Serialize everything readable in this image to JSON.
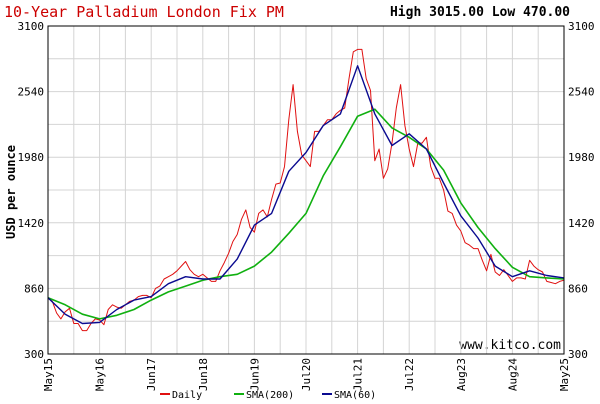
{
  "header": {
    "title": "10-Year Palladium London Fix PM",
    "high_low": "High 3015.00 Low 470.00"
  },
  "watermark": "www.kitco.com",
  "colors": {
    "title": "#cc0000",
    "daily": "#e01010",
    "sma200": "#10b010",
    "sma60": "#0a0a90",
    "grid": "#d4d4d4",
    "border": "#000000",
    "background": "#ffffff"
  },
  "chart_data": {
    "type": "line",
    "title": "10-Year Palladium London Fix PM",
    "ylabel": "USD per ounce",
    "xlabel": "",
    "ylim": [
      300,
      3100
    ],
    "yticks": [
      300,
      860,
      1420,
      1980,
      2540,
      3100
    ],
    "x_range": [
      "2015-05",
      "2025-05"
    ],
    "x_tick_labels": [
      "May15",
      "May16",
      "Jun17",
      "Jun18",
      "Jun19",
      "Jul20",
      "Jul21",
      "Jul22",
      "Aug23",
      "Aug24",
      "May25"
    ],
    "grid": true,
    "legend_position": "bottom",
    "series": [
      {
        "name": "Daily",
        "color": "#e01010",
        "x": [
          "2015-05",
          "2015-06",
          "2015-07",
          "2015-08",
          "2015-09",
          "2015-10",
          "2015-11",
          "2015-12",
          "2016-01",
          "2016-02",
          "2016-03",
          "2016-04",
          "2016-05",
          "2016-06",
          "2016-07",
          "2016-08",
          "2016-09",
          "2016-10",
          "2016-11",
          "2016-12",
          "2017-01",
          "2017-02",
          "2017-03",
          "2017-04",
          "2017-05",
          "2017-06",
          "2017-07",
          "2017-08",
          "2017-09",
          "2017-10",
          "2017-11",
          "2017-12",
          "2018-01",
          "2018-02",
          "2018-03",
          "2018-04",
          "2018-05",
          "2018-06",
          "2018-07",
          "2018-08",
          "2018-09",
          "2018-10",
          "2018-11",
          "2018-12",
          "2019-01",
          "2019-02",
          "2019-03",
          "2019-04",
          "2019-05",
          "2019-06",
          "2019-07",
          "2019-08",
          "2019-09",
          "2019-10",
          "2019-11",
          "2019-12",
          "2020-01",
          "2020-02",
          "2020-03",
          "2020-04",
          "2020-05",
          "2020-06",
          "2020-07",
          "2020-08",
          "2020-09",
          "2020-10",
          "2020-11",
          "2020-12",
          "2021-01",
          "2021-02",
          "2021-03",
          "2021-04",
          "2021-05",
          "2021-06",
          "2021-07",
          "2021-08",
          "2021-09",
          "2021-10",
          "2021-11",
          "2021-12",
          "2022-01",
          "2022-02",
          "2022-03",
          "2022-04",
          "2022-05",
          "2022-06",
          "2022-07",
          "2022-08",
          "2022-09",
          "2022-10",
          "2022-11",
          "2022-12",
          "2023-01",
          "2023-02",
          "2023-03",
          "2023-04",
          "2023-05",
          "2023-06",
          "2023-07",
          "2023-08",
          "2023-09",
          "2023-10",
          "2023-11",
          "2023-12",
          "2024-01",
          "2024-02",
          "2024-03",
          "2024-04",
          "2024-05",
          "2024-06",
          "2024-07",
          "2024-08",
          "2024-09",
          "2024-10",
          "2024-11",
          "2024-12",
          "2025-01",
          "2025-02",
          "2025-03",
          "2025-04",
          "2025-05"
        ],
        "y": [
          780,
          750,
          650,
          600,
          660,
          690,
          560,
          560,
          500,
          500,
          560,
          600,
          590,
          550,
          680,
          720,
          700,
          690,
          720,
          750,
          760,
          790,
          800,
          800,
          780,
          860,
          880,
          940,
          960,
          980,
          1010,
          1050,
          1090,
          1020,
          980,
          960,
          980,
          950,
          920,
          920,
          1010,
          1080,
          1160,
          1260,
          1320,
          1450,
          1530,
          1380,
          1340,
          1500,
          1530,
          1470,
          1620,
          1750,
          1760,
          1900,
          2300,
          2600,
          2200,
          2000,
          1950,
          1900,
          2200,
          2200,
          2250,
          2300,
          2300,
          2350,
          2380,
          2400,
          2650,
          2880,
          2900,
          2900,
          2650,
          2550,
          1950,
          2050,
          1800,
          1880,
          2100,
          2400,
          2600,
          2250,
          2050,
          1900,
          2100,
          2100,
          2150,
          1900,
          1800,
          1800,
          1700,
          1520,
          1500,
          1400,
          1350,
          1250,
          1230,
          1200,
          1200,
          1100,
          1010,
          1150,
          1000,
          970,
          1020,
          970,
          920,
          950,
          950,
          940,
          1100,
          1050,
          1020,
          1000,
          920,
          910,
          900,
          920,
          930
        ]
      },
      {
        "name": "SMA(200)",
        "color": "#10b010",
        "x": [
          "2015-05",
          "2015-09",
          "2016-01",
          "2016-05",
          "2016-09",
          "2017-01",
          "2017-05",
          "2017-09",
          "2018-01",
          "2018-05",
          "2018-09",
          "2019-01",
          "2019-05",
          "2019-09",
          "2020-01",
          "2020-05",
          "2020-09",
          "2021-01",
          "2021-05",
          "2021-09",
          "2022-01",
          "2022-05",
          "2022-09",
          "2023-01",
          "2023-05",
          "2023-09",
          "2024-01",
          "2024-05",
          "2024-09",
          "2025-01",
          "2025-05"
        ],
        "y": [
          780,
          720,
          640,
          600,
          630,
          680,
          760,
          830,
          880,
          930,
          960,
          980,
          1050,
          1170,
          1330,
          1500,
          1820,
          2070,
          2330,
          2390,
          2230,
          2150,
          2050,
          1870,
          1590,
          1380,
          1200,
          1040,
          960,
          950,
          940
        ]
      },
      {
        "name": "SMA(60)",
        "color": "#0a0a90",
        "x": [
          "2015-05",
          "2015-09",
          "2016-01",
          "2016-05",
          "2016-09",
          "2017-01",
          "2017-05",
          "2017-09",
          "2018-01",
          "2018-05",
          "2018-09",
          "2019-01",
          "2019-05",
          "2019-09",
          "2020-01",
          "2020-05",
          "2020-09",
          "2021-01",
          "2021-05",
          "2021-09",
          "2022-01",
          "2022-05",
          "2022-09",
          "2023-01",
          "2023-05",
          "2023-09",
          "2024-01",
          "2024-05",
          "2024-09",
          "2025-01",
          "2025-05"
        ],
        "y": [
          780,
          640,
          560,
          570,
          680,
          760,
          790,
          900,
          960,
          940,
          940,
          1110,
          1400,
          1500,
          1860,
          2020,
          2250,
          2350,
          2760,
          2350,
          2080,
          2180,
          2050,
          1760,
          1480,
          1290,
          1050,
          960,
          1010,
          970,
          950
        ]
      }
    ]
  }
}
